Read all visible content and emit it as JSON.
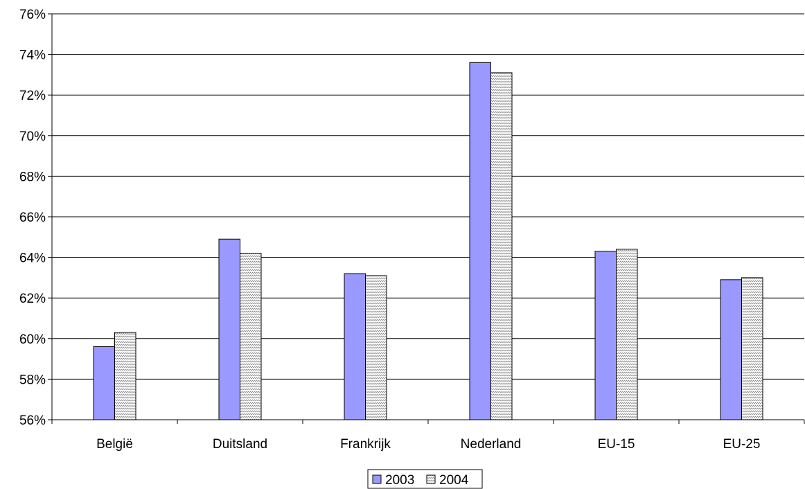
{
  "chart_data": {
    "type": "bar",
    "categories": [
      "België",
      "Duitsland",
      "Frankrijk",
      "Nederland",
      "EU-15",
      "EU-25"
    ],
    "series": [
      {
        "name": "2003",
        "values": [
          59.6,
          64.9,
          63.2,
          73.6,
          64.3,
          62.9
        ],
        "color": "#9999ff",
        "pattern": "solid"
      },
      {
        "name": "2004",
        "values": [
          60.3,
          64.2,
          63.1,
          73.1,
          64.4,
          63.0
        ],
        "color": "#ffffff",
        "pattern": "zigzag"
      }
    ],
    "ylim": [
      56,
      76
    ],
    "yticks": [
      56,
      58,
      60,
      62,
      64,
      66,
      68,
      70,
      72,
      74,
      76
    ],
    "ytick_format": "%",
    "grid": true,
    "legend": "bottom"
  }
}
